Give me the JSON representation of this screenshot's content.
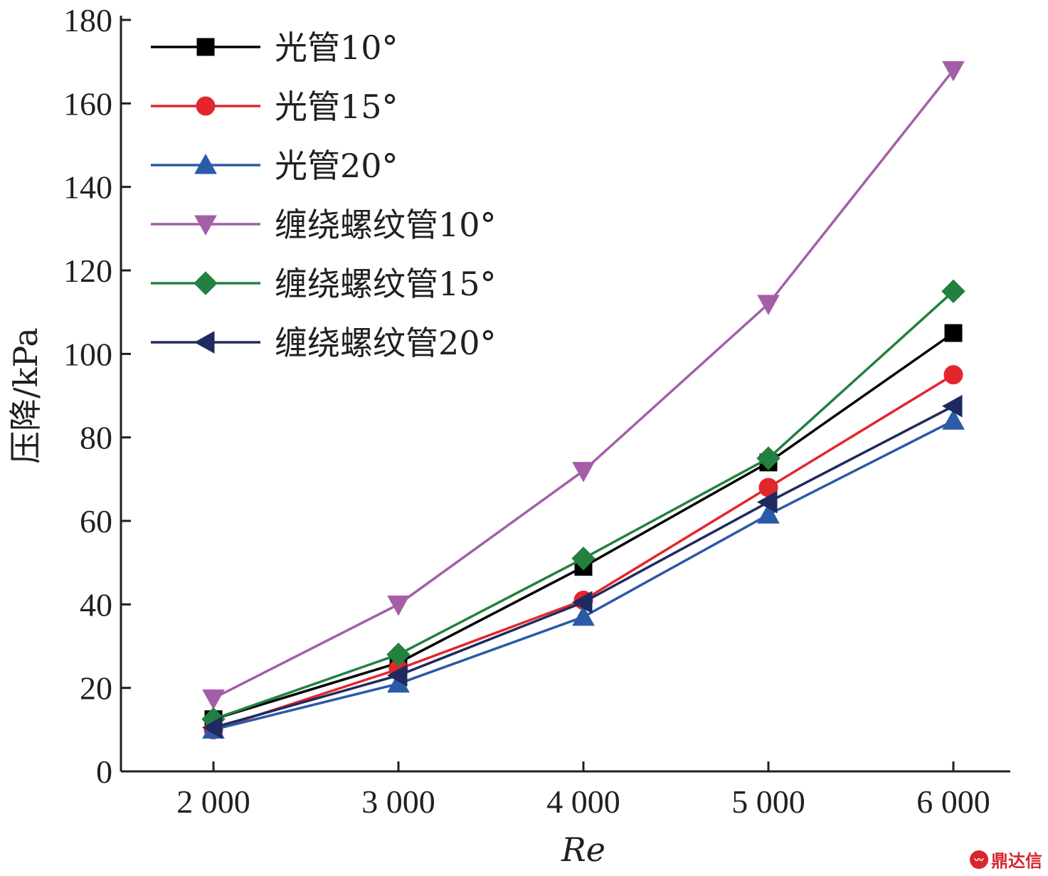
{
  "chart_data": {
    "type": "line",
    "title": "",
    "xlabel": "Re",
    "ylabel": "压降/kPa",
    "x": [
      2000,
      3000,
      4000,
      5000,
      6000
    ],
    "x_tick_labels": [
      "2 000",
      "3 000",
      "4 000",
      "5 000",
      "6 000"
    ],
    "y_ticks": [
      0,
      20,
      40,
      60,
      80,
      100,
      120,
      140,
      160,
      180
    ],
    "ylim": [
      0,
      180
    ],
    "grid": false,
    "legend_position": "top-left",
    "series": [
      {
        "name": "光管10°",
        "color": "#000000",
        "marker": "square",
        "values": [
          12.5,
          26,
          49,
          74,
          105
        ]
      },
      {
        "name": "光管15°",
        "color": "#e3262b",
        "marker": "circle",
        "values": [
          10,
          24.5,
          41,
          68,
          95
        ]
      },
      {
        "name": "光管20°",
        "color": "#2a5aa8",
        "marker": "triangle-up",
        "values": [
          10,
          21,
          37,
          61.5,
          84
        ]
      },
      {
        "name": "缠绕螺纹管10°",
        "color": "#a45ea8",
        "marker": "triangle-down",
        "values": [
          17.5,
          40,
          72,
          112,
          168
        ]
      },
      {
        "name": "缠绕螺纹管15°",
        "color": "#23803f",
        "marker": "diamond",
        "values": [
          12.5,
          28,
          51,
          75,
          115
        ]
      },
      {
        "name": "缠绕螺纹管20°",
        "color": "#1f2a60",
        "marker": "triangle-left",
        "values": [
          10.5,
          23,
          40.5,
          64.5,
          87.5
        ]
      }
    ]
  },
  "watermark": {
    "text": "鼎达信",
    "icon": "wave-badge-icon",
    "color": "#d8262e"
  }
}
